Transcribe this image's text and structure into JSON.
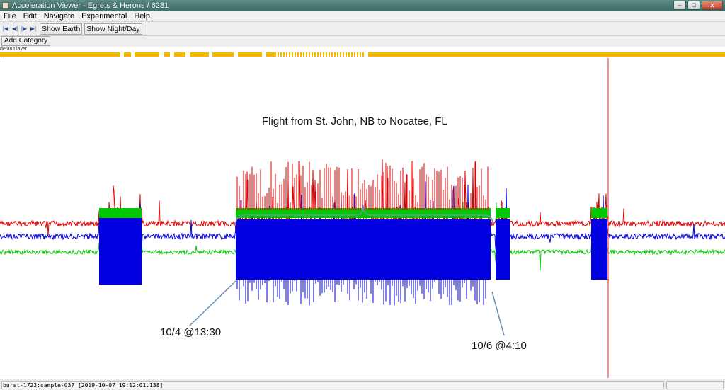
{
  "window": {
    "title": "Acceleration Viewer - Egrets & Herons / 6231",
    "controls": {
      "minimize": "–",
      "maximize": "□",
      "close": "x"
    }
  },
  "menu": {
    "items": [
      "File",
      "Edit",
      "Navigate",
      "Experimental",
      "Help"
    ]
  },
  "toolbar": {
    "nav_icons": [
      "skip-to-start-icon",
      "step-back-icon",
      "step-forward-icon",
      "skip-to-end-icon"
    ],
    "nav_glyphs": [
      "|◀",
      "◀|",
      "|▶",
      "▶|"
    ],
    "show_earth_label": "Show Earth",
    "show_night_day_label": "Show Night/Day",
    "add_category_label": "Add Category"
  },
  "layers": {
    "default_layer": "default layer",
    "gps": "gps"
  },
  "annotations": {
    "flight": "Flight from St. John, NB to Nocatee, FL",
    "start": "10/4 @13:30",
    "end": "10/6 @4:10"
  },
  "colors": {
    "x_axis": "#e00000",
    "y_axis": "#00c800",
    "z_axis": "#0000e0",
    "gps_track": "#f5b800",
    "cursor_line": "#e05050"
  },
  "status": {
    "text": "burst-1723:sample-037 [2019-10-07 19:12:01.138]"
  }
}
